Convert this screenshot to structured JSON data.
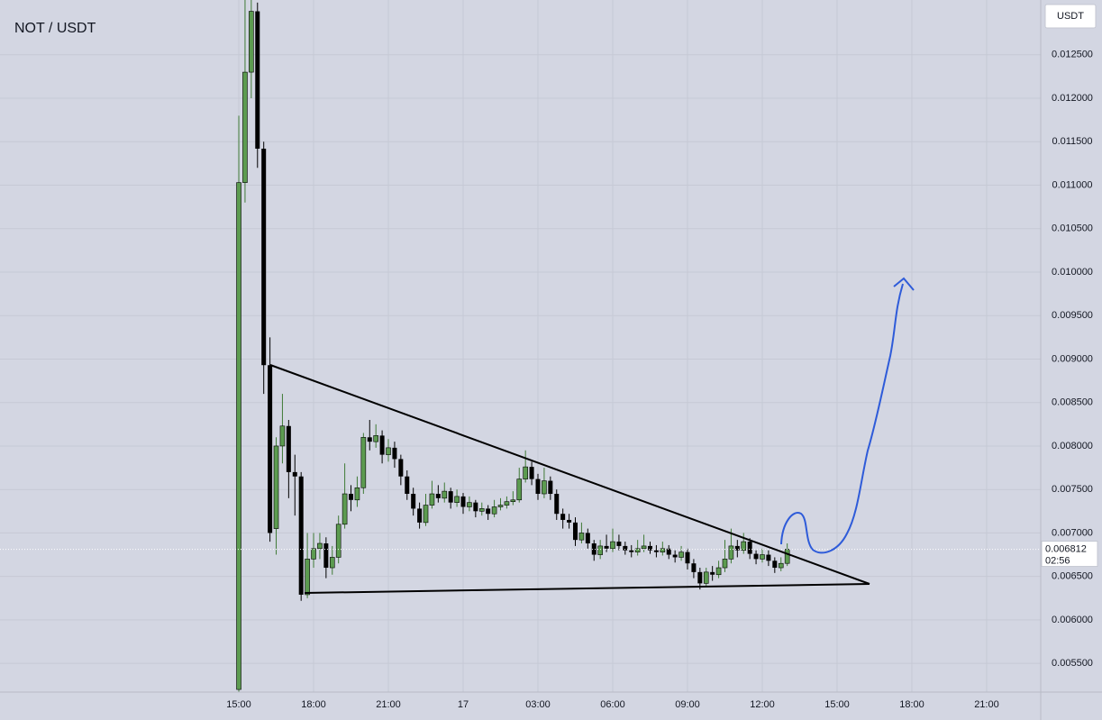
{
  "chart_data": {
    "type": "candlestick",
    "title": "NOT / USDT",
    "currency": "USDT",
    "last_price": 0.006812,
    "countdown": "02:56",
    "up_color": "#5c9b50",
    "down_color": "#000000",
    "grid": true,
    "xlim": [
      5.42,
      47.17
    ],
    "ylim": [
      0.00517,
      0.01313
    ],
    "xticks": [
      {
        "value": 15,
        "label": "15:00"
      },
      {
        "value": 18,
        "label": "18:00"
      },
      {
        "value": 21,
        "label": "21:00"
      },
      {
        "value": 24,
        "label": "17"
      },
      {
        "value": 27,
        "label": "03:00"
      },
      {
        "value": 30,
        "label": "06:00"
      },
      {
        "value": 33,
        "label": "09:00"
      },
      {
        "value": 36,
        "label": "12:00"
      },
      {
        "value": 39,
        "label": "15:00"
      },
      {
        "value": 42,
        "label": "18:00"
      },
      {
        "value": 45,
        "label": "21:00"
      }
    ],
    "yticks": [
      {
        "value": 0.0055,
        "label": "0.005500"
      },
      {
        "value": 0.006,
        "label": "0.006000"
      },
      {
        "value": 0.0065,
        "label": "0.006500"
      },
      {
        "value": 0.007,
        "label": "0.007000"
      },
      {
        "value": 0.0075,
        "label": "0.007500"
      },
      {
        "value": 0.008,
        "label": "0.008000"
      },
      {
        "value": 0.0085,
        "label": "0.008500"
      },
      {
        "value": 0.009,
        "label": "0.009000"
      },
      {
        "value": 0.0095,
        "label": "0.009500"
      },
      {
        "value": 0.01,
        "label": "0.010000"
      },
      {
        "value": 0.0105,
        "label": "0.010500"
      },
      {
        "value": 0.011,
        "label": "0.011000"
      },
      {
        "value": 0.0115,
        "label": "0.011500"
      },
      {
        "value": 0.012,
        "label": "0.012000"
      },
      {
        "value": 0.0125,
        "label": "0.012500"
      }
    ],
    "x": [
      15,
      15.25,
      15.5,
      15.75,
      16,
      16.25,
      16.5,
      16.75,
      17,
      17.25,
      17.5,
      17.75,
      18,
      18.25,
      18.5,
      18.75,
      19,
      19.25,
      19.5,
      19.75,
      20,
      20.25,
      20.5,
      20.75,
      21,
      21.25,
      21.5,
      21.75,
      22,
      22.25,
      22.5,
      22.75,
      23,
      23.25,
      23.5,
      23.75,
      24,
      24.25,
      24.5,
      24.75,
      25,
      25.25,
      25.5,
      25.75,
      26,
      26.25,
      26.5,
      26.75,
      27,
      27.25,
      27.5,
      27.75,
      28,
      28.25,
      28.5,
      28.75,
      29,
      29.25,
      29.5,
      29.75,
      30,
      30.25,
      30.5,
      30.75,
      31,
      31.25,
      31.5,
      31.75,
      32,
      32.25,
      32.5,
      32.75,
      33,
      33.25,
      33.5,
      33.75,
      34,
      34.25,
      34.5,
      34.75,
      35,
      35.25,
      35.5,
      35.75,
      36,
      36.25,
      36.5,
      36.75,
      37
    ],
    "open": [
      0.0052,
      0.01103,
      0.0123,
      0.013,
      0.01142,
      0.00893,
      0.00705,
      0.008,
      0.00823,
      0.0077,
      0.00765,
      0.00629,
      0.0067,
      0.00682,
      0.00688,
      0.0066,
      0.00672,
      0.0071,
      0.00745,
      0.00738,
      0.00752,
      0.0081,
      0.00805,
      0.00812,
      0.0079,
      0.00798,
      0.00785,
      0.00765,
      0.00745,
      0.00728,
      0.00712,
      0.00732,
      0.00745,
      0.0074,
      0.00748,
      0.00735,
      0.00742,
      0.0073,
      0.00735,
      0.00725,
      0.00728,
      0.00722,
      0.0073,
      0.00732,
      0.00736,
      0.00738,
      0.00762,
      0.00776,
      0.00762,
      0.00745,
      0.0076,
      0.00745,
      0.00722,
      0.00715,
      0.00712,
      0.00692,
      0.007,
      0.00688,
      0.00675,
      0.00685,
      0.00682,
      0.0069,
      0.00685,
      0.0068,
      0.00678,
      0.00682,
      0.00685,
      0.0068,
      0.00678,
      0.00682,
      0.00675,
      0.00672,
      0.00678,
      0.00665,
      0.00655,
      0.00642,
      0.00655,
      0.00652,
      0.0066,
      0.0067,
      0.00685,
      0.0068,
      0.0069,
      0.00676,
      0.0067,
      0.00675,
      0.00668,
      0.0066,
      0.00665
    ],
    "high": [
      0.0118,
      0.0132,
      0.0135,
      0.0131,
      0.0115,
      0.00925,
      0.0081,
      0.0086,
      0.0083,
      0.0079,
      0.0077,
      0.007,
      0.007,
      0.007,
      0.00695,
      0.00685,
      0.0072,
      0.0078,
      0.00755,
      0.00765,
      0.00815,
      0.0083,
      0.00825,
      0.00818,
      0.00808,
      0.00805,
      0.0079,
      0.00772,
      0.00752,
      0.00735,
      0.00745,
      0.0076,
      0.00755,
      0.00758,
      0.00752,
      0.0075,
      0.00746,
      0.00742,
      0.00738,
      0.00735,
      0.00732,
      0.00738,
      0.0074,
      0.00742,
      0.00748,
      0.00775,
      0.00795,
      0.00782,
      0.00768,
      0.00775,
      0.00765,
      0.0075,
      0.00728,
      0.00722,
      0.00718,
      0.00712,
      0.00705,
      0.00692,
      0.00692,
      0.00698,
      0.00705,
      0.00698,
      0.0069,
      0.00686,
      0.00692,
      0.00698,
      0.0069,
      0.00686,
      0.0069,
      0.00686,
      0.0068,
      0.00685,
      0.00682,
      0.0067,
      0.0066,
      0.0066,
      0.00662,
      0.00668,
      0.00692,
      0.00705,
      0.00692,
      0.007,
      0.00694,
      0.0068,
      0.00682,
      0.0068,
      0.00672,
      0.00672,
      0.00688
    ],
    "low": [
      0.005,
      0.0108,
      0.012,
      0.0112,
      0.0086,
      0.0069,
      0.00675,
      0.0078,
      0.0074,
      0.0072,
      0.00622,
      0.00625,
      0.0066,
      0.0067,
      0.00648,
      0.00652,
      0.00665,
      0.00705,
      0.00725,
      0.0073,
      0.00745,
      0.00795,
      0.00798,
      0.0078,
      0.00782,
      0.00775,
      0.00755,
      0.00738,
      0.0072,
      0.00705,
      0.00708,
      0.00728,
      0.00735,
      0.00735,
      0.00728,
      0.0073,
      0.00722,
      0.00725,
      0.00718,
      0.0072,
      0.00715,
      0.00718,
      0.00726,
      0.00728,
      0.00732,
      0.00735,
      0.00758,
      0.00755,
      0.00738,
      0.0074,
      0.00738,
      0.00715,
      0.00705,
      0.00705,
      0.00685,
      0.00688,
      0.00682,
      0.00668,
      0.0067,
      0.00678,
      0.00678,
      0.0068,
      0.00675,
      0.00672,
      0.00674,
      0.00678,
      0.00676,
      0.00672,
      0.00674,
      0.0067,
      0.00666,
      0.00668,
      0.00658,
      0.00648,
      0.00635,
      0.00638,
      0.00645,
      0.00648,
      0.00655,
      0.00665,
      0.00672,
      0.00676,
      0.0067,
      0.00664,
      0.00666,
      0.00662,
      0.00654,
      0.00656,
      0.00662
    ],
    "close": [
      0.01103,
      0.0123,
      0.013,
      0.01142,
      0.00893,
      0.007,
      0.008,
      0.00823,
      0.0077,
      0.00765,
      0.00629,
      0.0067,
      0.00682,
      0.00688,
      0.0066,
      0.00672,
      0.0071,
      0.00745,
      0.00738,
      0.00752,
      0.0081,
      0.00805,
      0.00812,
      0.0079,
      0.00798,
      0.00785,
      0.00765,
      0.00745,
      0.00728,
      0.00712,
      0.00732,
      0.00745,
      0.0074,
      0.00748,
      0.00735,
      0.00742,
      0.0073,
      0.00735,
      0.00725,
      0.00728,
      0.00722,
      0.0073,
      0.00732,
      0.00736,
      0.00738,
      0.00762,
      0.00776,
      0.00762,
      0.00745,
      0.0076,
      0.00745,
      0.00722,
      0.00715,
      0.00712,
      0.00692,
      0.007,
      0.00688,
      0.00675,
      0.00685,
      0.00682,
      0.0069,
      0.00685,
      0.0068,
      0.00678,
      0.00682,
      0.00685,
      0.0068,
      0.00678,
      0.00682,
      0.00675,
      0.00672,
      0.00678,
      0.00665,
      0.00655,
      0.00642,
      0.00655,
      0.00652,
      0.0066,
      0.0067,
      0.00685,
      0.0068,
      0.0069,
      0.00676,
      0.0067,
      0.00675,
      0.00668,
      0.0066,
      0.00665,
      0.006812
    ]
  }
}
